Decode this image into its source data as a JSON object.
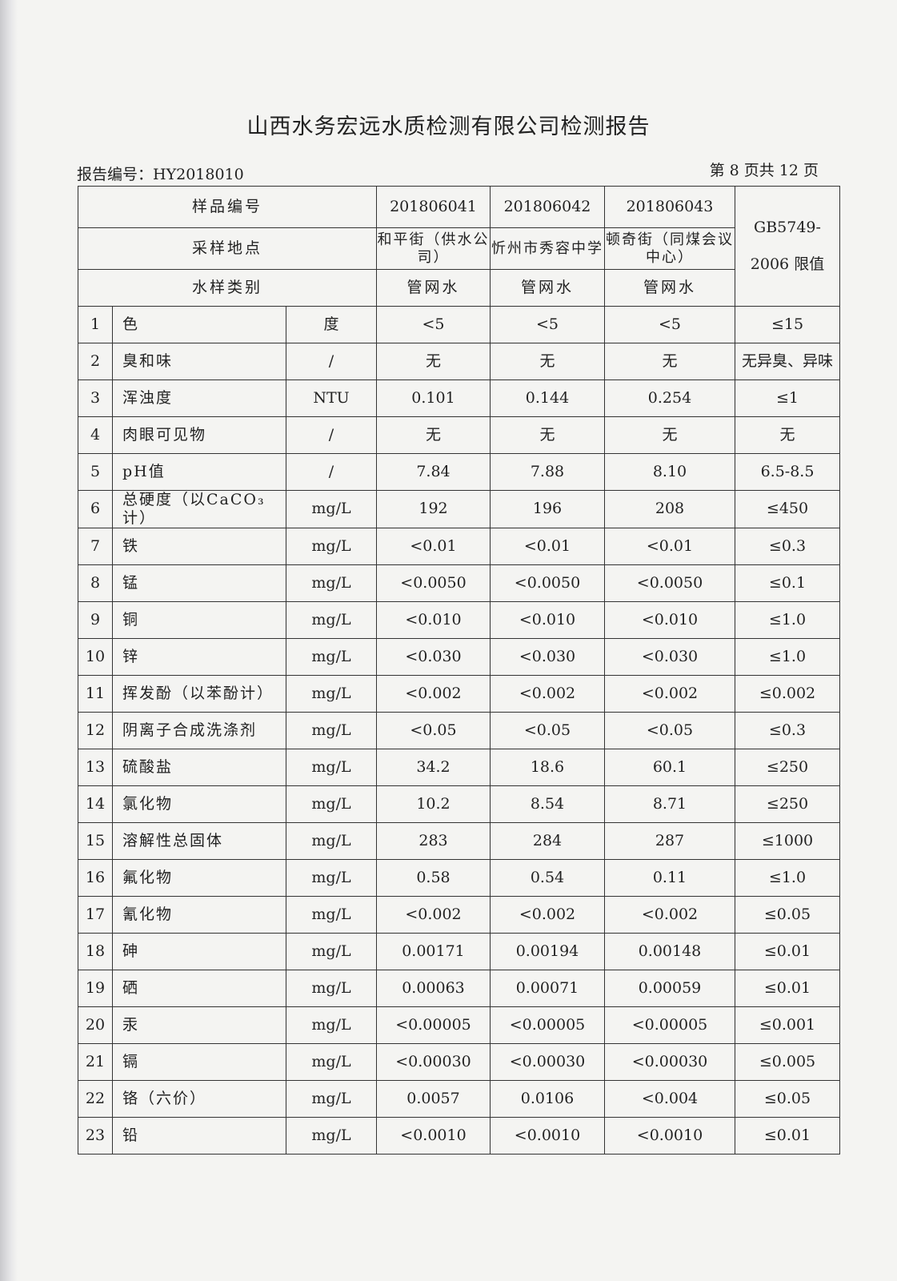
{
  "title": "山西水务宏远水质检测有限公司检测报告",
  "report_no": "报告编号：HY2018010",
  "page_no": "第 8 页共 12 页",
  "header": {
    "sample_no_label": "样品编号",
    "location_label": "采样地点",
    "type_label": "水样类别",
    "standard_label": "GB5749-2006 限值",
    "samples": [
      {
        "no": "201806041",
        "location": "和平街（供水公司）",
        "type": "管网水"
      },
      {
        "no": "201806042",
        "location": "忻州市秀容中学",
        "type": "管网水"
      },
      {
        "no": "201806043",
        "location": "顿奇街（同煤会议中心）",
        "type": "管网水"
      }
    ]
  },
  "rows": [
    {
      "n": "1",
      "item": "色",
      "unit": "度",
      "v": [
        "<5",
        "<5",
        "<5"
      ],
      "limit": "≤15"
    },
    {
      "n": "2",
      "item": "臭和味",
      "unit": "/",
      "v": [
        "无",
        "无",
        "无"
      ],
      "limit": "无异臭、异味"
    },
    {
      "n": "3",
      "item": "浑浊度",
      "unit": "NTU",
      "v": [
        "0.101",
        "0.144",
        "0.254"
      ],
      "limit": "≤1"
    },
    {
      "n": "4",
      "item": "肉眼可见物",
      "unit": "/",
      "v": [
        "无",
        "无",
        "无"
      ],
      "limit": "无"
    },
    {
      "n": "5",
      "item": "pH值",
      "unit": "/",
      "v": [
        "7.84",
        "7.88",
        "8.10"
      ],
      "limit": "6.5-8.5"
    },
    {
      "n": "6",
      "item": "总硬度（以CaCO₃计）",
      "unit": "mg/L",
      "v": [
        "192",
        "196",
        "208"
      ],
      "limit": "≤450"
    },
    {
      "n": "7",
      "item": "铁",
      "unit": "mg/L",
      "v": [
        "<0.01",
        "<0.01",
        "<0.01"
      ],
      "limit": "≤0.3"
    },
    {
      "n": "8",
      "item": "锰",
      "unit": "mg/L",
      "v": [
        "<0.0050",
        "<0.0050",
        "<0.0050"
      ],
      "limit": "≤0.1"
    },
    {
      "n": "9",
      "item": "铜",
      "unit": "mg/L",
      "v": [
        "<0.010",
        "<0.010",
        "<0.010"
      ],
      "limit": "≤1.0"
    },
    {
      "n": "10",
      "item": "锌",
      "unit": "mg/L",
      "v": [
        "<0.030",
        "<0.030",
        "<0.030"
      ],
      "limit": "≤1.0"
    },
    {
      "n": "11",
      "item": "挥发酚（以苯酚计）",
      "unit": "mg/L",
      "v": [
        "<0.002",
        "<0.002",
        "<0.002"
      ],
      "limit": "≤0.002"
    },
    {
      "n": "12",
      "item": "阴离子合成洗涤剂",
      "unit": "mg/L",
      "v": [
        "<0.05",
        "<0.05",
        "<0.05"
      ],
      "limit": "≤0.3"
    },
    {
      "n": "13",
      "item": "硫酸盐",
      "unit": "mg/L",
      "v": [
        "34.2",
        "18.6",
        "60.1"
      ],
      "limit": "≤250"
    },
    {
      "n": "14",
      "item": "氯化物",
      "unit": "mg/L",
      "v": [
        "10.2",
        "8.54",
        "8.71"
      ],
      "limit": "≤250"
    },
    {
      "n": "15",
      "item": "溶解性总固体",
      "unit": "mg/L",
      "v": [
        "283",
        "284",
        "287"
      ],
      "limit": "≤1000"
    },
    {
      "n": "16",
      "item": "氟化物",
      "unit": "mg/L",
      "v": [
        "0.58",
        "0.54",
        "0.11"
      ],
      "limit": "≤1.0"
    },
    {
      "n": "17",
      "item": "氰化物",
      "unit": "mg/L",
      "v": [
        "<0.002",
        "<0.002",
        "<0.002"
      ],
      "limit": "≤0.05"
    },
    {
      "n": "18",
      "item": "砷",
      "unit": "mg/L",
      "v": [
        "0.00171",
        "0.00194",
        "0.00148"
      ],
      "limit": "≤0.01"
    },
    {
      "n": "19",
      "item": "硒",
      "unit": "mg/L",
      "v": [
        "0.00063",
        "0.00071",
        "0.00059"
      ],
      "limit": "≤0.01"
    },
    {
      "n": "20",
      "item": "汞",
      "unit": "mg/L",
      "v": [
        "<0.00005",
        "<0.00005",
        "<0.00005"
      ],
      "limit": "≤0.001"
    },
    {
      "n": "21",
      "item": "镉",
      "unit": "mg/L",
      "v": [
        "<0.00030",
        "<0.00030",
        "<0.00030"
      ],
      "limit": "≤0.005"
    },
    {
      "n": "22",
      "item": "铬（六价）",
      "unit": "mg/L",
      "v": [
        "0.0057",
        "0.0106",
        "<0.004"
      ],
      "limit": "≤0.05"
    },
    {
      "n": "23",
      "item": "铅",
      "unit": "mg/L",
      "v": [
        "<0.0010",
        "<0.0010",
        "<0.0010"
      ],
      "limit": "≤0.01"
    }
  ]
}
